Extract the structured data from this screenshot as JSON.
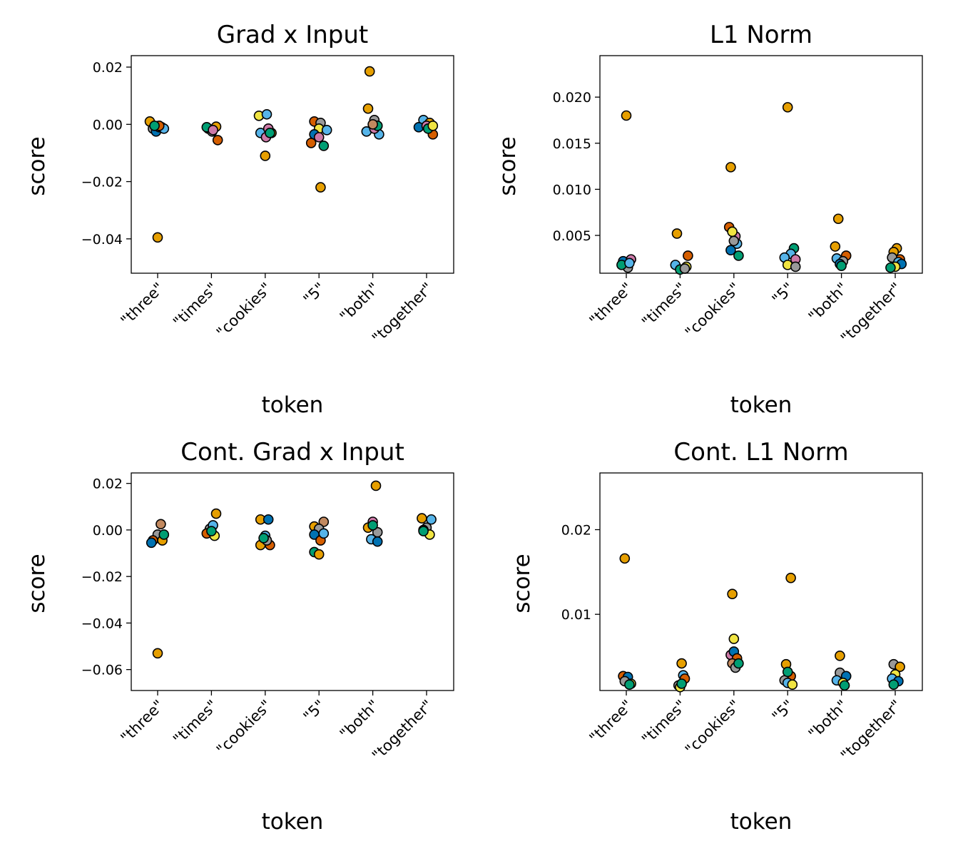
{
  "palette": [
    "#E69F00",
    "#D55E00",
    "#999999",
    "#F0E442",
    "#CC79A7",
    "#56B4E9",
    "#0072B2",
    "#009E73",
    "#C2895F"
  ],
  "chart_data": [
    {
      "type": "scatter",
      "title": "Grad x Input",
      "xlabel": "token",
      "ylabel": "score",
      "categories": [
        "\"three\"",
        "\"times\"",
        "\"cookies\"",
        "\"5\"",
        "\"both\"",
        "\"together\""
      ],
      "ylim": [
        -0.052,
        0.024
      ],
      "yticks": [
        -0.04,
        -0.02,
        0.0,
        0.02
      ],
      "ytick_labels": [
        "−0.04",
        "−0.02",
        "0.00",
        "0.02"
      ],
      "points": [
        [
          [
            -0.5,
            0.001,
            0
          ],
          [
            -0.3,
            -0.0015,
            2
          ],
          [
            -0.1,
            -0.0025,
            6
          ],
          [
            0.1,
            -0.001,
            4
          ],
          [
            0.25,
            -0.001,
            3
          ],
          [
            0.4,
            -0.0015,
            5
          ],
          [
            0.1,
            -0.0005,
            1
          ],
          [
            0.0,
            -0.0395,
            0
          ],
          [
            -0.2,
            -0.0005,
            7
          ]
        ],
        [
          [
            -0.2,
            -0.0015,
            3
          ],
          [
            0.05,
            -0.0025,
            2
          ],
          [
            0.3,
            -0.0008,
            0
          ],
          [
            0.4,
            -0.0055,
            1
          ],
          [
            -0.3,
            -0.001,
            7
          ],
          [
            0.1,
            -0.002,
            4
          ]
        ],
        [
          [
            -0.4,
            0.003,
            3
          ],
          [
            0.1,
            0.0035,
            5
          ],
          [
            -0.3,
            -0.003,
            5
          ],
          [
            0.4,
            -0.003,
            0
          ],
          [
            0.2,
            -0.0015,
            4
          ],
          [
            0.05,
            -0.0045,
            4
          ],
          [
            0.0,
            -0.011,
            0
          ],
          [
            0.3,
            -0.003,
            7
          ]
        ],
        [
          [
            -0.3,
            0.001,
            1
          ],
          [
            0.1,
            0.0005,
            2
          ],
          [
            -0.5,
            -0.0065,
            1
          ],
          [
            0.0,
            -0.0015,
            3
          ],
          [
            -0.3,
            -0.0035,
            6
          ],
          [
            0.5,
            -0.002,
            5
          ],
          [
            0.3,
            -0.0075,
            7
          ],
          [
            0.1,
            -0.022,
            0
          ],
          [
            0.0,
            -0.0045,
            4
          ]
        ],
        [
          [
            -0.2,
            0.0185,
            0
          ],
          [
            -0.3,
            0.0055,
            0
          ],
          [
            0.1,
            0.0015,
            2
          ],
          [
            0.3,
            -0.0005,
            1
          ],
          [
            -0.4,
            -0.0025,
            5
          ],
          [
            0.4,
            -0.0035,
            5
          ],
          [
            0.1,
            -0.0015,
            4
          ],
          [
            0.3,
            -0.0005,
            7
          ],
          [
            0.0,
            0.0,
            8
          ]
        ],
        [
          [
            -0.2,
            0.0015,
            5
          ],
          [
            0.2,
            0.0005,
            0
          ],
          [
            0.4,
            -0.0035,
            1
          ],
          [
            -0.5,
            -0.001,
            6
          ],
          [
            0.0,
            -0.0005,
            4
          ],
          [
            0.1,
            -0.0015,
            7
          ],
          [
            0.4,
            -0.0005,
            3
          ]
        ]
      ]
    },
    {
      "type": "scatter",
      "title": "L1 Norm",
      "xlabel": "token",
      "ylabel": "score",
      "categories": [
        "\"three\"",
        "\"times\"",
        "\"cookies\"",
        "\"5\"",
        "\"both\"",
        "\"together\""
      ],
      "ylim": [
        0.0009,
        0.0245
      ],
      "yticks": [
        0.005,
        0.01,
        0.015,
        0.02
      ],
      "ytick_labels": [
        "0.005",
        "0.010",
        "0.015",
        "0.020"
      ],
      "points": [
        [
          [
            0.0,
            0.018,
            0
          ],
          [
            -0.2,
            0.0022,
            6
          ],
          [
            0.3,
            0.0024,
            4
          ],
          [
            0.1,
            0.0015,
            2
          ],
          [
            -0.3,
            0.0018,
            7
          ],
          [
            0.2,
            0.002,
            5
          ]
        ],
        [
          [
            -0.2,
            0.0052,
            0
          ],
          [
            0.5,
            0.0028,
            1
          ],
          [
            -0.3,
            0.0018,
            5
          ],
          [
            0.4,
            0.0016,
            3
          ],
          [
            0.0,
            0.0013,
            7
          ],
          [
            0.3,
            0.0014,
            2
          ]
        ],
        [
          [
            -0.2,
            0.0124,
            0
          ],
          [
            -0.3,
            0.0059,
            1
          ],
          [
            0.1,
            0.0049,
            4
          ],
          [
            -0.1,
            0.0054,
            3
          ],
          [
            0.2,
            0.0041,
            5
          ],
          [
            -0.2,
            0.0034,
            6
          ],
          [
            0.3,
            0.0028,
            7
          ],
          [
            0.0,
            0.0044,
            2
          ]
        ],
        [
          [
            0.0,
            0.0189,
            0
          ],
          [
            0.4,
            0.0036,
            7
          ],
          [
            0.2,
            0.003,
            5
          ],
          [
            -0.2,
            0.0026,
            5
          ],
          [
            0.5,
            0.0024,
            4
          ],
          [
            0.0,
            0.0018,
            3
          ],
          [
            0.5,
            0.0016,
            2
          ]
        ],
        [
          [
            -0.2,
            0.0068,
            0
          ],
          [
            -0.4,
            0.0038,
            0
          ],
          [
            0.3,
            0.0028,
            1
          ],
          [
            -0.3,
            0.0025,
            5
          ],
          [
            0.1,
            0.0022,
            2
          ],
          [
            -0.1,
            0.0019,
            6
          ],
          [
            0.0,
            0.0017,
            7
          ]
        ],
        [
          [
            0.1,
            0.0036,
            0
          ],
          [
            -0.1,
            0.0032,
            0
          ],
          [
            0.3,
            0.0024,
            1
          ],
          [
            -0.2,
            0.0026,
            2
          ],
          [
            0.2,
            0.0021,
            5
          ],
          [
            0.4,
            0.0019,
            6
          ],
          [
            0.0,
            0.0016,
            3
          ],
          [
            -0.3,
            0.0015,
            7
          ]
        ]
      ]
    },
    {
      "type": "scatter",
      "title": "Cont. Grad x Input",
      "xlabel": "token",
      "ylabel": "score",
      "categories": [
        "\"three\"",
        "\"times\"",
        "\"cookies\"",
        "\"5\"",
        "\"both\"",
        "\"together\""
      ],
      "ylim": [
        -0.069,
        0.0245
      ],
      "yticks": [
        -0.06,
        -0.04,
        -0.02,
        0.0,
        0.02
      ],
      "ytick_labels": [
        "−0.06",
        "−0.04",
        "−0.02",
        "0.00",
        "0.02"
      ],
      "points": [
        [
          [
            0.2,
            0.0025,
            8
          ],
          [
            0.0,
            -0.002,
            2
          ],
          [
            -0.3,
            -0.0045,
            1
          ],
          [
            0.3,
            -0.0045,
            0
          ],
          [
            -0.4,
            -0.0055,
            6
          ],
          [
            0.4,
            -0.002,
            7
          ],
          [
            0.0,
            -0.053,
            0
          ]
        ],
        [
          [
            0.3,
            0.007,
            0
          ],
          [
            -0.1,
            0.0005,
            2
          ],
          [
            0.1,
            0.002,
            5
          ],
          [
            -0.3,
            -0.0015,
            1
          ],
          [
            0.2,
            -0.0025,
            3
          ],
          [
            0.0,
            -0.0005,
            7
          ]
        ],
        [
          [
            -0.3,
            0.0045,
            0
          ],
          [
            0.2,
            0.0045,
            6
          ],
          [
            0.0,
            -0.0025,
            5
          ],
          [
            -0.3,
            -0.0065,
            0
          ],
          [
            0.3,
            -0.0065,
            1
          ],
          [
            0.1,
            -0.0045,
            2
          ],
          [
            -0.1,
            -0.0035,
            7
          ]
        ],
        [
          [
            -0.3,
            0.0015,
            0
          ],
          [
            0.3,
            0.0035,
            8
          ],
          [
            0.0,
            0.0005,
            2
          ],
          [
            -0.3,
            -0.002,
            6
          ],
          [
            0.1,
            -0.0045,
            1
          ],
          [
            0.3,
            -0.0015,
            5
          ],
          [
            -0.3,
            -0.0095,
            7
          ],
          [
            0.0,
            -0.0105,
            0
          ]
        ],
        [
          [
            0.2,
            0.019,
            0
          ],
          [
            0.0,
            0.0035,
            4
          ],
          [
            -0.3,
            0.001,
            0
          ],
          [
            0.3,
            -0.001,
            2
          ],
          [
            -0.1,
            -0.004,
            5
          ],
          [
            0.3,
            -0.005,
            6
          ],
          [
            0.0,
            0.002,
            7
          ]
        ],
        [
          [
            -0.3,
            0.005,
            0
          ],
          [
            0.3,
            0.0045,
            5
          ],
          [
            0.0,
            0.001,
            2
          ],
          [
            -0.2,
            0.0,
            1
          ],
          [
            0.2,
            -0.002,
            3
          ],
          [
            -0.2,
            -0.0005,
            7
          ]
        ]
      ]
    },
    {
      "type": "scatter",
      "title": "Cont. L1 Norm",
      "xlabel": "token",
      "ylabel": "score",
      "categories": [
        "\"three\"",
        "\"times\"",
        "\"cookies\"",
        "\"5\"",
        "\"both\"",
        "\"together\""
      ],
      "ylim": [
        0.001,
        0.0267
      ],
      "yticks": [
        0.01,
        0.02
      ],
      "ytick_labels": [
        "0.01",
        "0.02"
      ],
      "points": [
        [
          [
            -0.1,
            0.0166,
            0
          ],
          [
            -0.2,
            0.0027,
            1
          ],
          [
            0.1,
            0.0026,
            6
          ],
          [
            -0.1,
            0.0021,
            2
          ],
          [
            0.3,
            0.0018,
            3
          ],
          [
            0.2,
            0.0017,
            7
          ]
        ],
        [
          [
            0.1,
            0.0042,
            0
          ],
          [
            0.2,
            0.0028,
            5
          ],
          [
            0.3,
            0.0024,
            1
          ],
          [
            -0.1,
            0.0016,
            2
          ],
          [
            0.0,
            0.0014,
            3
          ],
          [
            0.1,
            0.0018,
            7
          ]
        ],
        [
          [
            -0.1,
            0.0124,
            0
          ],
          [
            0.0,
            0.0071,
            3
          ],
          [
            -0.2,
            0.0052,
            4
          ],
          [
            0.0,
            0.0056,
            6
          ],
          [
            0.2,
            0.0048,
            1
          ],
          [
            -0.1,
            0.0042,
            8
          ],
          [
            0.1,
            0.0037,
            2
          ],
          [
            0.3,
            0.0042,
            7
          ]
        ],
        [
          [
            0.2,
            0.0143,
            0
          ],
          [
            -0.1,
            0.0041,
            0
          ],
          [
            0.2,
            0.0027,
            1
          ],
          [
            -0.2,
            0.0022,
            2
          ],
          [
            0.0,
            0.0019,
            5
          ],
          [
            0.3,
            0.0017,
            3
          ],
          [
            0.0,
            0.0032,
            7
          ]
        ],
        [
          [
            -0.1,
            0.0051,
            0
          ],
          [
            -0.1,
            0.0031,
            2
          ],
          [
            0.3,
            0.0027,
            6
          ],
          [
            -0.3,
            0.0022,
            5
          ],
          [
            0.1,
            0.0019,
            3
          ],
          [
            0.2,
            0.0016,
            7
          ]
        ],
        [
          [
            -0.1,
            0.0041,
            2
          ],
          [
            0.3,
            0.0038,
            0
          ],
          [
            0.0,
            0.0029,
            3
          ],
          [
            -0.2,
            0.0024,
            5
          ],
          [
            0.2,
            0.0021,
            6
          ],
          [
            -0.1,
            0.0017,
            7
          ]
        ]
      ]
    }
  ]
}
